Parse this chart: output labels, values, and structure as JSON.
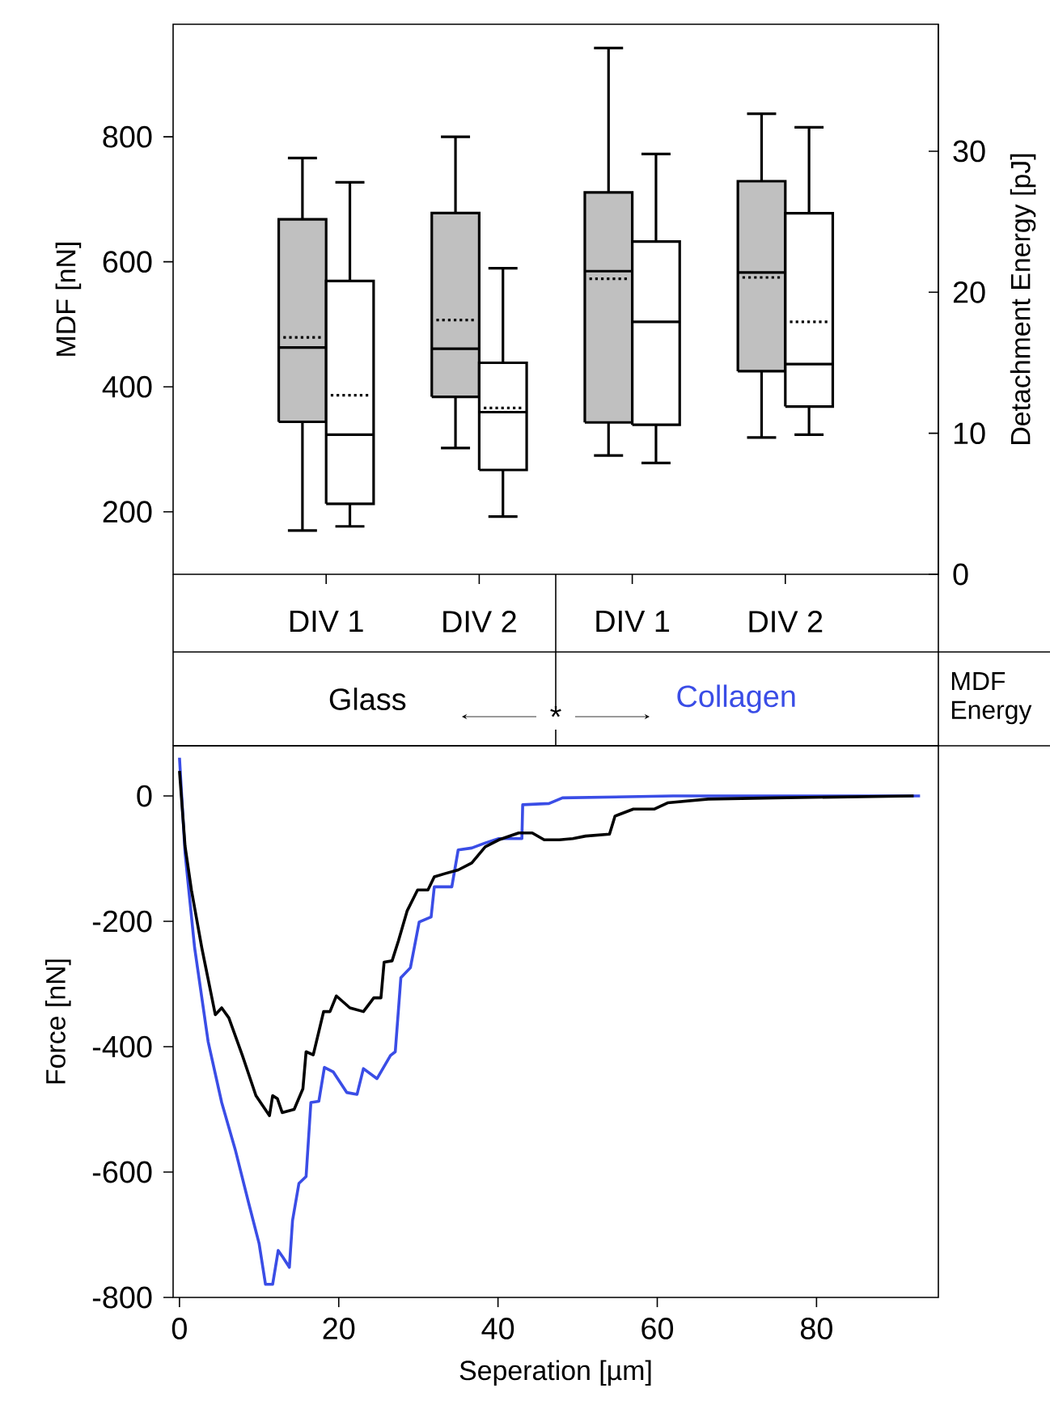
{
  "chart_data": [
    {
      "type": "box",
      "ylabel": "MDF [nN]",
      "y2label": "Detachment Energy [pJ]",
      "categories": [
        "DIV 1",
        "DIV 2",
        "DIV 1",
        "DIV 2"
      ],
      "ylim": [
        100,
        980
      ],
      "yticks": [
        200,
        400,
        600,
        800
      ],
      "y2lim": [
        0,
        39
      ],
      "y2ticks": [
        0,
        10,
        20,
        30
      ],
      "annotations": [
        "*",
        "MDF",
        "Energy"
      ],
      "series": [
        {
          "color": "#c0c0c0",
          "axis": "y",
          "boxes": [
            {
              "low": 170,
              "q1": 344,
              "median": 463,
              "q3": 668,
              "high": 766,
              "mean": 479
            },
            {
              "low": 302,
              "q1": 384,
              "median": 461,
              "q3": 678,
              "high": 800,
              "mean": 507
            },
            {
              "low": 290,
              "q1": 343,
              "median": 585,
              "q3": 711,
              "high": 942,
              "mean": 573
            },
            {
              "low": 319,
              "q1": 425,
              "median": 583,
              "q3": 729,
              "high": 837,
              "mean": 575
            }
          ]
        },
        {
          "color": "#ffffff",
          "axis": "y2",
          "boxes": [
            {
              "low": 3.4,
              "q1": 5.0,
              "median": 9.9,
              "q3": 20.8,
              "high": 27.8,
              "mean": 12.7
            },
            {
              "low": 4.1,
              "q1": 7.4,
              "median": 11.5,
              "q3": 15.0,
              "high": 21.7,
              "mean": 11.8
            },
            {
              "low": 7.9,
              "q1": 10.6,
              "median": 17.9,
              "q3": 23.6,
              "high": 29.8
            },
            {
              "low": 9.9,
              "q1": 11.9,
              "median": 14.9,
              "q3": 25.6,
              "high": 31.7,
              "mean": 17.9
            }
          ]
        }
      ]
    },
    {
      "type": "line",
      "xlabel": "Seperation [µm]",
      "ylabel": "Force [nN]",
      "xlim": [
        -0.8,
        95.3
      ],
      "ylim": [
        -800,
        80
      ],
      "xticks": [
        0,
        20,
        40,
        60,
        80
      ],
      "yticks": [
        0,
        -200,
        -400,
        -600,
        -800
      ],
      "marker": "none",
      "line_style": "solid",
      "series": [
        {
          "name": "Glass",
          "color": "#000000",
          "x": [
            0,
            0.7,
            1.5,
            2.8,
            4.5,
            5.3,
            6.2,
            7.9,
            9.6,
            11.3,
            11.7,
            12.3,
            12.9,
            14.4,
            15.5,
            15.9,
            16.8,
            18.1,
            18.9,
            19.7,
            21.4,
            23.1,
            24.4,
            25.3,
            25.7,
            26.7,
            27.5,
            28.6,
            29.9,
            31.2,
            32,
            33.3,
            35,
            36.7,
            38.4,
            40.1,
            42.6,
            44.3,
            45.8,
            47.7,
            49.4,
            51,
            54,
            54.7,
            57,
            59.6,
            61.3,
            66.4,
            74.8,
            92.2
          ],
          "values": [
            40,
            -80,
            -150,
            -242,
            -349,
            -338,
            -354,
            -414,
            -478,
            -510,
            -478,
            -483,
            -505,
            -500,
            -467,
            -408,
            -413,
            -344,
            -344,
            -319,
            -338,
            -344,
            -322,
            -322,
            -265,
            -263,
            -231,
            -183,
            -150,
            -150,
            -129,
            -124,
            -118,
            -107,
            -81,
            -70,
            -59,
            -59,
            -70,
            -70,
            -68,
            -64,
            -61,
            -32,
            -21,
            -21,
            -11,
            -5,
            -3,
            0
          ]
        },
        {
          "name": "Collagen",
          "color": "#3a4de6",
          "x": [
            0,
            0.7,
            1.9,
            3.6,
            5.3,
            7,
            8.7,
            10,
            10.8,
            11.7,
            12.4,
            13,
            13.8,
            14.2,
            15,
            15.9,
            16.5,
            17.5,
            18.2,
            19.3,
            21,
            22.3,
            23.1,
            24.8,
            26.5,
            27.1,
            27.8,
            29,
            30.1,
            31.6,
            32,
            34.2,
            35,
            36.7,
            38.4,
            40.1,
            43,
            43.1,
            46.4,
            48.1,
            62,
            93
          ],
          "values": [
            61,
            -91,
            -242,
            -392,
            -489,
            -564,
            -650,
            -714,
            -779,
            -779,
            -725,
            -736,
            -752,
            -677,
            -618,
            -607,
            -489,
            -487,
            -433,
            -440,
            -473,
            -476,
            -435,
            -451,
            -414,
            -408,
            -290,
            -274,
            -201,
            -193,
            -145,
            -145,
            -86,
            -83,
            -75,
            -68,
            -68,
            -14,
            -12,
            -3,
            0,
            0
          ]
        }
      ]
    }
  ]
}
